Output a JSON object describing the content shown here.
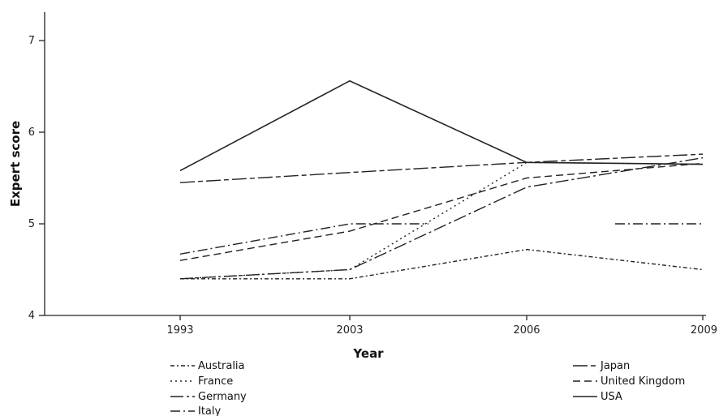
{
  "chart_data": {
    "type": "line",
    "title": "",
    "xlabel": "Year",
    "ylabel": "Expert score",
    "categories": [
      "1993",
      "2003",
      "2006",
      "2009"
    ],
    "ylim": [
      4,
      7
    ],
    "yticks": [
      4,
      5,
      6,
      7
    ],
    "grid": false,
    "legend_placement": "bottom",
    "series": [
      {
        "name": "Australia",
        "style": "dash-dot-dot",
        "values": [
          4.4,
          4.4,
          4.72,
          4.5
        ]
      },
      {
        "name": "France",
        "style": "dotted",
        "values": [
          4.4,
          4.5,
          5.67,
          5.65
        ]
      },
      {
        "name": "Germany",
        "style": "long-dash-dot",
        "values": [
          4.4,
          4.5,
          5.4,
          5.72
        ]
      },
      {
        "name": "Italy",
        "style": "dash-dot",
        "values": [
          4.67,
          5.0,
          5.0,
          5.0
        ],
        "note_gap": true
      },
      {
        "name": "Japan",
        "style": "long-dash-short-dash",
        "values": [
          5.45,
          5.56,
          5.67,
          5.76
        ]
      },
      {
        "name": "United Kingdom",
        "style": "dashed",
        "values": [
          4.6,
          4.92,
          5.5,
          5.66
        ]
      },
      {
        "name": "USA",
        "style": "solid",
        "values": [
          5.58,
          6.56,
          5.67,
          5.65
        ]
      }
    ]
  }
}
